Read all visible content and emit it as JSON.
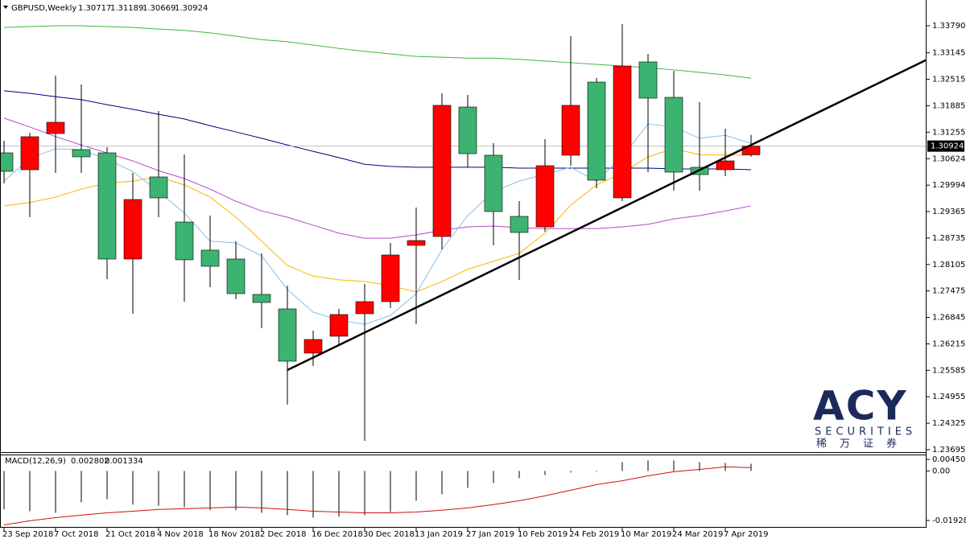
{
  "chart_data": {
    "type": "candlestick",
    "symbol": "GBPUSD,Weekly",
    "categories": [
      "23 Sep 2018",
      null,
      "7 Oct 2018",
      null,
      "21 Oct 2018",
      null,
      "4 Nov 2018",
      null,
      "18 Nov 2018",
      null,
      "2 Dec 2018",
      null,
      "16 Dec 2018",
      null,
      "30 Dec 2018",
      null,
      "13 Jan 2019",
      null,
      "27 Jan 2019",
      null,
      "10 Feb 2019",
      null,
      "24 Feb 2019",
      null,
      "10 Mar 2019",
      null,
      "24 Mar 2019",
      null,
      "7 Apr 2019",
      null
    ],
    "open": [
      1.30763,
      1.30361,
      1.31223,
      1.3084,
      1.30763,
      1.28235,
      1.30189,
      1.29116,
      1.28446,
      1.28235,
      1.27392,
      1.27047,
      1.25994,
      1.26396,
      1.26932,
      1.2722,
      1.2856,
      1.28771,
      1.31855,
      1.30706,
      1.2925,
      1.29001,
      1.30706,
      1.32449,
      1.29691,
      1.32928,
      1.32085,
      1.30419,
      1.30361,
      1.30717
    ],
    "high": [
      1.31051,
      1.31242,
      1.32602,
      1.32392,
      1.30897,
      1.30285,
      1.3176,
      1.30725,
      1.29269,
      1.28656,
      1.28369,
      1.27603,
      1.2653,
      1.27047,
      1.27641,
      1.28618,
      1.29461,
      1.32181,
      1.32143,
      1.30993,
      1.29614,
      1.31089,
      1.33541,
      1.32545,
      1.33828,
      1.3312,
      1.32717,
      1.3197,
      1.31338,
      1.31189
    ],
    "low": [
      1.30035,
      1.29231,
      1.30285,
      1.30285,
      1.27756,
      1.26932,
      1.29231,
      1.2722,
      1.27564,
      1.27277,
      1.26587,
      1.24768,
      1.25687,
      1.26166,
      1.23906,
      1.27066,
      1.26683,
      1.28465,
      1.30419,
      1.2856,
      1.27737,
      1.28886,
      1.30457,
      1.29921,
      1.29614,
      1.30304,
      1.29863,
      1.29863,
      1.30208,
      1.30669
    ],
    "close": [
      1.30323,
      1.31147,
      1.31491,
      1.30668,
      1.28235,
      1.29652,
      1.29691,
      1.28216,
      1.28062,
      1.27411,
      1.272,
      1.25802,
      1.26319,
      1.26913,
      1.2722,
      1.28331,
      1.28675,
      1.31894,
      1.30744,
      1.29365,
      1.28867,
      1.30457,
      1.31894,
      1.30112,
      1.32832,
      1.32066,
      1.30304,
      1.30246,
      1.30572,
      1.30924
    ],
    "colors": {
      "up": "#ff0000",
      "down": "#3cb371",
      "wick": "#000000",
      "price_line": "#c0c0c0"
    },
    "ylim": [
      1.23637,
      1.34403
    ],
    "yticks": [
      {
        "value": 1.3379,
        "label": "1.33790"
      },
      1.33145,
      1.32515,
      1.31885,
      1.31255,
      1.30624,
      1.29994,
      1.29365,
      1.28735,
      1.28105,
      1.27475,
      1.26845,
      1.26215,
      1.25585,
      1.24955,
      1.24325,
      1.23695
    ],
    "series": [
      {
        "color": "#3cb83c",
        "values": [
          1.3375,
          1.3377,
          1.3379,
          1.3379,
          1.3377,
          1.3375,
          1.3371,
          1.3368,
          1.3362,
          1.3354,
          1.3346,
          1.3341,
          1.3333,
          1.3325,
          1.3318,
          1.3312,
          1.3306,
          1.3304,
          1.3302,
          1.3302,
          1.3299,
          1.3295,
          1.3291,
          1.3287,
          1.3283,
          1.3279,
          1.3274,
          1.3268,
          1.3262,
          1.3254
        ]
      },
      {
        "color": "#000080",
        "values": [
          1.3224,
          1.3218,
          1.321,
          1.3203,
          1.3191,
          1.318,
          1.3168,
          1.3157,
          1.3141,
          1.3126,
          1.3111,
          1.3095,
          1.308,
          1.3065,
          1.3049,
          1.3044,
          1.3042,
          1.3042,
          1.3042,
          1.3042,
          1.304,
          1.304,
          1.304,
          1.304,
          1.304,
          1.304,
          1.3038,
          1.3038,
          1.3038,
          1.3036
        ]
      },
      {
        "color": "#b448c8",
        "values": [
          1.3159,
          1.3138,
          1.3115,
          1.3095,
          1.3076,
          1.3057,
          1.3034,
          1.3015,
          1.299,
          1.2961,
          1.2938,
          1.2923,
          1.2904,
          1.2885,
          1.2873,
          1.2873,
          1.2881,
          1.2892,
          1.29,
          1.2902,
          1.2898,
          1.2896,
          1.2896,
          1.2896,
          1.29,
          1.2906,
          1.2919,
          1.2927,
          1.2938,
          1.295
        ]
      },
      {
        "color": "#ffb400",
        "values": [
          1.295,
          1.2958,
          1.2971,
          1.299,
          1.3004,
          1.3009,
          1.3019,
          1.3,
          1.2971,
          1.2923,
          1.2866,
          1.2808,
          1.2783,
          1.2774,
          1.277,
          1.276,
          1.2745,
          1.277,
          1.2799,
          1.2818,
          1.2837,
          1.2885,
          1.2952,
          1.3,
          1.3028,
          1.3067,
          1.3086,
          1.3072,
          1.3071,
          1.3071
        ]
      },
      {
        "color": "#87bfe8",
        "values": [
          1.3009,
          1.3063,
          1.3086,
          1.3084,
          1.3061,
          1.3032,
          1.2984,
          1.2933,
          1.2866,
          1.2862,
          1.2831,
          1.2751,
          1.2697,
          1.2678,
          1.2668,
          1.2689,
          1.2741,
          1.2846,
          1.2927,
          1.2984,
          1.3009,
          1.3025,
          1.3042,
          1.3009,
          1.3067,
          1.3145,
          1.3138,
          1.3111,
          1.3118,
          1.3099
        ]
      }
    ],
    "trendline": {
      "color": "#000000",
      "values": [
        null,
        null,
        null,
        null,
        null,
        null,
        null,
        null,
        null,
        null,
        null,
        1.2559,
        null,
        null,
        null,
        null,
        null,
        null,
        null,
        null,
        null,
        null,
        null,
        null,
        null,
        null,
        null,
        null,
        null,
        1.3095
      ]
    },
    "macd": {
      "title": "MACD(12,26,9)",
      "ylim": [
        -0.0218,
        0.0061
      ],
      "yticks": [
        0.004506,
        {
          "value": 0,
          "label": "0.00"
        },
        -0.019282
      ],
      "histogram": {
        "color": "#808080",
        "values": [
          -0.015,
          -0.0157,
          -0.0163,
          -0.0122,
          -0.011,
          -0.0131,
          -0.0135,
          -0.0141,
          -0.0153,
          -0.0153,
          -0.0163,
          -0.0172,
          -0.0182,
          -0.0178,
          -0.0172,
          -0.016,
          -0.0116,
          -0.0091,
          -0.0066,
          -0.0047,
          -0.0028,
          -0.0016,
          -0.0006,
          -0.0003,
          0.0034,
          0.0041,
          0.0041,
          0.0034,
          0.0031,
          0.002802
        ]
      },
      "signal": {
        "color": "#d01010",
        "values": [
          -0.021,
          -0.0194,
          -0.0182,
          -0.0172,
          -0.0163,
          -0.0157,
          -0.015,
          -0.0147,
          -0.0144,
          -0.0141,
          -0.0144,
          -0.015,
          -0.0157,
          -0.016,
          -0.0163,
          -0.0163,
          -0.016,
          -0.0153,
          -0.0144,
          -0.0131,
          -0.0116,
          -0.0097,
          -0.0075,
          -0.0053,
          -0.0038,
          -0.0019,
          -0.0003,
          0.0006,
          0.0016,
          0.001334
        ]
      }
    },
    "logo": {
      "brand": "ACY",
      "subtitle": "SECURITIES",
      "chinese": "稀万证券"
    }
  }
}
